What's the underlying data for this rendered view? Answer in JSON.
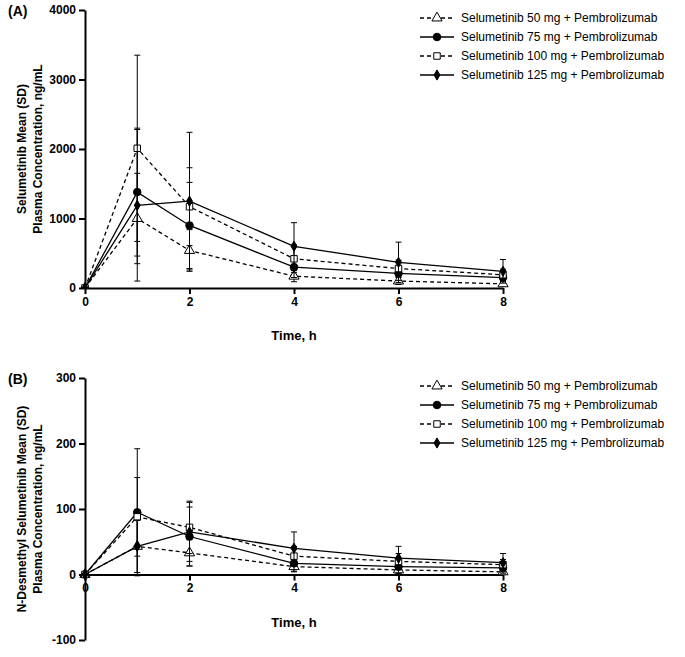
{
  "chart_data": [
    {
      "type": "line",
      "label": "(A)",
      "xlabel": "Time, h",
      "ylabel": [
        "Selumetinib Mean (SD)",
        "Plasma Concentration, ng/mL"
      ],
      "x": [
        0,
        1,
        2,
        4,
        6,
        8
      ],
      "xlim": [
        0,
        8
      ],
      "xticks": [
        0,
        2,
        4,
        6,
        8
      ],
      "ylim": [
        0,
        4000
      ],
      "yticks": [
        0,
        1000,
        2000,
        3000,
        4000
      ],
      "legend": "top-right",
      "series": [
        {
          "name": "Selumetinib 50 mg + Pembrolizumab",
          "color": "#000000",
          "marker": "triangle-open",
          "line_style": "dashed",
          "values": [
            0,
            1000,
            540,
            170,
            100,
            60
          ],
          "errors": [
            0,
            650,
            300,
            80,
            50,
            30
          ]
        },
        {
          "name": "Selumetinib 75 mg + Pembrolizumab",
          "color": "#000000",
          "marker": "circle",
          "line_style": "solid",
          "values": [
            0,
            1380,
            900,
            300,
            210,
            150
          ],
          "errors": [
            0,
            920,
            620,
            150,
            100,
            60
          ]
        },
        {
          "name": "Selumetinib 100 mg + Pembrolizumab",
          "color": "#000000",
          "marker": "square-open",
          "line_style": "dashed",
          "values": [
            0,
            2010,
            1170,
            420,
            280,
            190
          ],
          "errors": [
            0,
            1340,
            560,
            200,
            120,
            80
          ]
        },
        {
          "name": "Selumetinib 125 mg + Pembrolizumab",
          "color": "#000000",
          "marker": "diamond",
          "line_style": "solid",
          "values": [
            0,
            1190,
            1250,
            600,
            370,
            240
          ],
          "errors": [
            0,
            1090,
            990,
            340,
            290,
            170
          ]
        }
      ]
    },
    {
      "type": "line",
      "label": "(B)",
      "xlabel": "Time, h",
      "ylabel": [
        "N-Desmethyl Selumetinib Mean (SD)",
        "Plasma Concentration, ng/mL"
      ],
      "x": [
        0,
        1,
        2,
        4,
        6,
        8
      ],
      "xlim": [
        0,
        8
      ],
      "xticks": [
        0,
        2,
        4,
        6,
        8
      ],
      "ylim": [
        -100,
        300
      ],
      "yticks": [
        -100,
        0,
        100,
        200,
        300
      ],
      "legend": "top-right",
      "series": [
        {
          "name": "Selumetinib 50 mg + Pembrolizumab",
          "color": "#000000",
          "marker": "triangle-open",
          "line_style": "dashed",
          "values": [
            0,
            43,
            33,
            12,
            7,
            4
          ],
          "errors": [
            0,
            40,
            20,
            8,
            5,
            3
          ]
        },
        {
          "name": "Selumetinib 75 mg + Pembrolizumab",
          "color": "#000000",
          "marker": "circle",
          "line_style": "solid",
          "values": [
            0,
            95,
            58,
            17,
            12,
            10
          ],
          "errors": [
            0,
            97,
            45,
            12,
            10,
            8
          ]
        },
        {
          "name": "Selumetinib 100 mg + Pembrolizumab",
          "color": "#000000",
          "marker": "square-open",
          "line_style": "dashed",
          "values": [
            0,
            88,
            72,
            28,
            20,
            15
          ],
          "errors": [
            0,
            60,
            40,
            15,
            12,
            8
          ]
        },
        {
          "name": "Selumetinib 125 mg + Pembrolizumab",
          "color": "#000000",
          "marker": "diamond",
          "line_style": "solid",
          "values": [
            0,
            43,
            65,
            40,
            25,
            18
          ],
          "errors": [
            0,
            40,
            45,
            25,
            18,
            14
          ]
        }
      ]
    }
  ]
}
